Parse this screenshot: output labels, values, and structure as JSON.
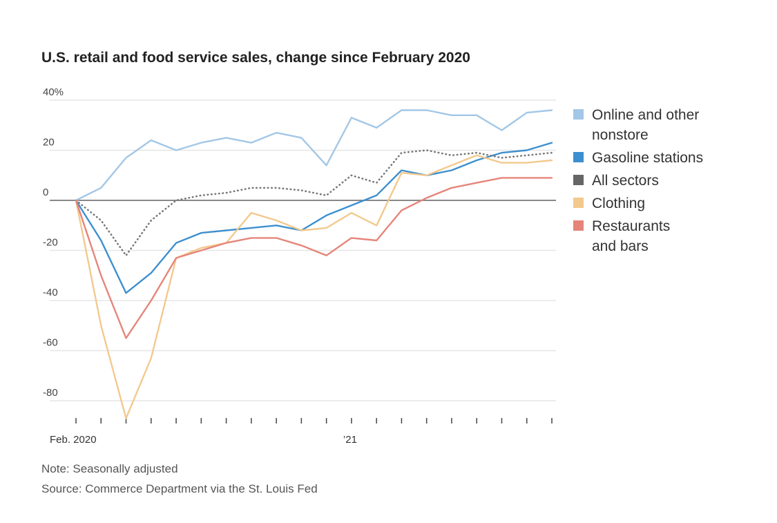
{
  "chart_data": {
    "type": "line",
    "title": "U.S. retail and food service sales, change since February 2020",
    "x": [
      "2020-02",
      "2020-03",
      "2020-04",
      "2020-05",
      "2020-06",
      "2020-07",
      "2020-08",
      "2020-09",
      "2020-10",
      "2020-11",
      "2020-12",
      "2021-01",
      "2021-02",
      "2021-03",
      "2021-04",
      "2021-05",
      "2021-06",
      "2021-07",
      "2021-08",
      "2021-09"
    ],
    "x_tick_labels": [
      {
        "label": "Feb. 2020",
        "index": 0
      },
      {
        "label": "’21",
        "index": 11
      }
    ],
    "ylim": [
      -88,
      42
    ],
    "y_ticks": [
      {
        "value": 40,
        "label": "40%"
      },
      {
        "value": 20,
        "label": "20"
      },
      {
        "value": 0,
        "label": "0"
      },
      {
        "value": -20,
        "label": "-20"
      },
      {
        "value": -40,
        "label": "-40"
      },
      {
        "value": -60,
        "label": "-60"
      },
      {
        "value": -80,
        "label": "-80"
      }
    ],
    "series": [
      {
        "name": "Online and other nonstore",
        "color": "#a3c7e6",
        "style": "solid",
        "values": [
          0,
          5,
          17,
          24,
          20,
          23,
          25,
          23,
          27,
          25,
          14,
          33,
          29,
          36,
          36,
          34,
          34,
          28,
          35,
          36
        ]
      },
      {
        "name": "Gasoline stations",
        "color": "#3d8fcf",
        "style": "solid",
        "values": [
          0,
          -16,
          -37,
          -29,
          -17,
          -13,
          -12,
          -11,
          -10,
          -12,
          -6,
          -2,
          2,
          12,
          10,
          12,
          16,
          19,
          20,
          23
        ]
      },
      {
        "name": "All sectors",
        "color": "#777777",
        "style": "dotted",
        "values": [
          0,
          -8,
          -22,
          -8,
          0,
          2,
          3,
          5,
          5,
          4,
          2,
          10,
          7,
          19,
          20,
          18,
          19,
          17,
          18,
          19
        ]
      },
      {
        "name": "Clothing",
        "color": "#f2c98e",
        "style": "solid",
        "values": [
          0,
          -50,
          -87,
          -63,
          -23,
          -19,
          -17,
          -5,
          -8,
          -12,
          -11,
          -5,
          -10,
          11,
          10,
          14,
          18,
          15,
          15,
          16
        ]
      },
      {
        "name": "Restaurants and bars",
        "color": "#e5857a",
        "style": "solid",
        "values": [
          0,
          -30,
          -55,
          -40,
          -23,
          -20,
          -17,
          -15,
          -15,
          -18,
          -22,
          -15,
          -16,
          -4,
          1,
          5,
          7,
          9,
          9,
          9
        ]
      }
    ],
    "legend": {
      "position": "right",
      "items": [
        {
          "label": "Online and other nonstore",
          "color": "#a3c7e6"
        },
        {
          "label": "Gasoline stations",
          "color": "#3d8fcf"
        },
        {
          "label": "All sectors",
          "color": "#666666"
        },
        {
          "label": "Clothing",
          "color": "#f2c98e"
        },
        {
          "label": "Restaurants and bars",
          "color": "#e5857a"
        }
      ]
    },
    "note": "Note: Seasonally adjusted",
    "source": "Source: Commerce Department via the St. Louis Fed"
  }
}
